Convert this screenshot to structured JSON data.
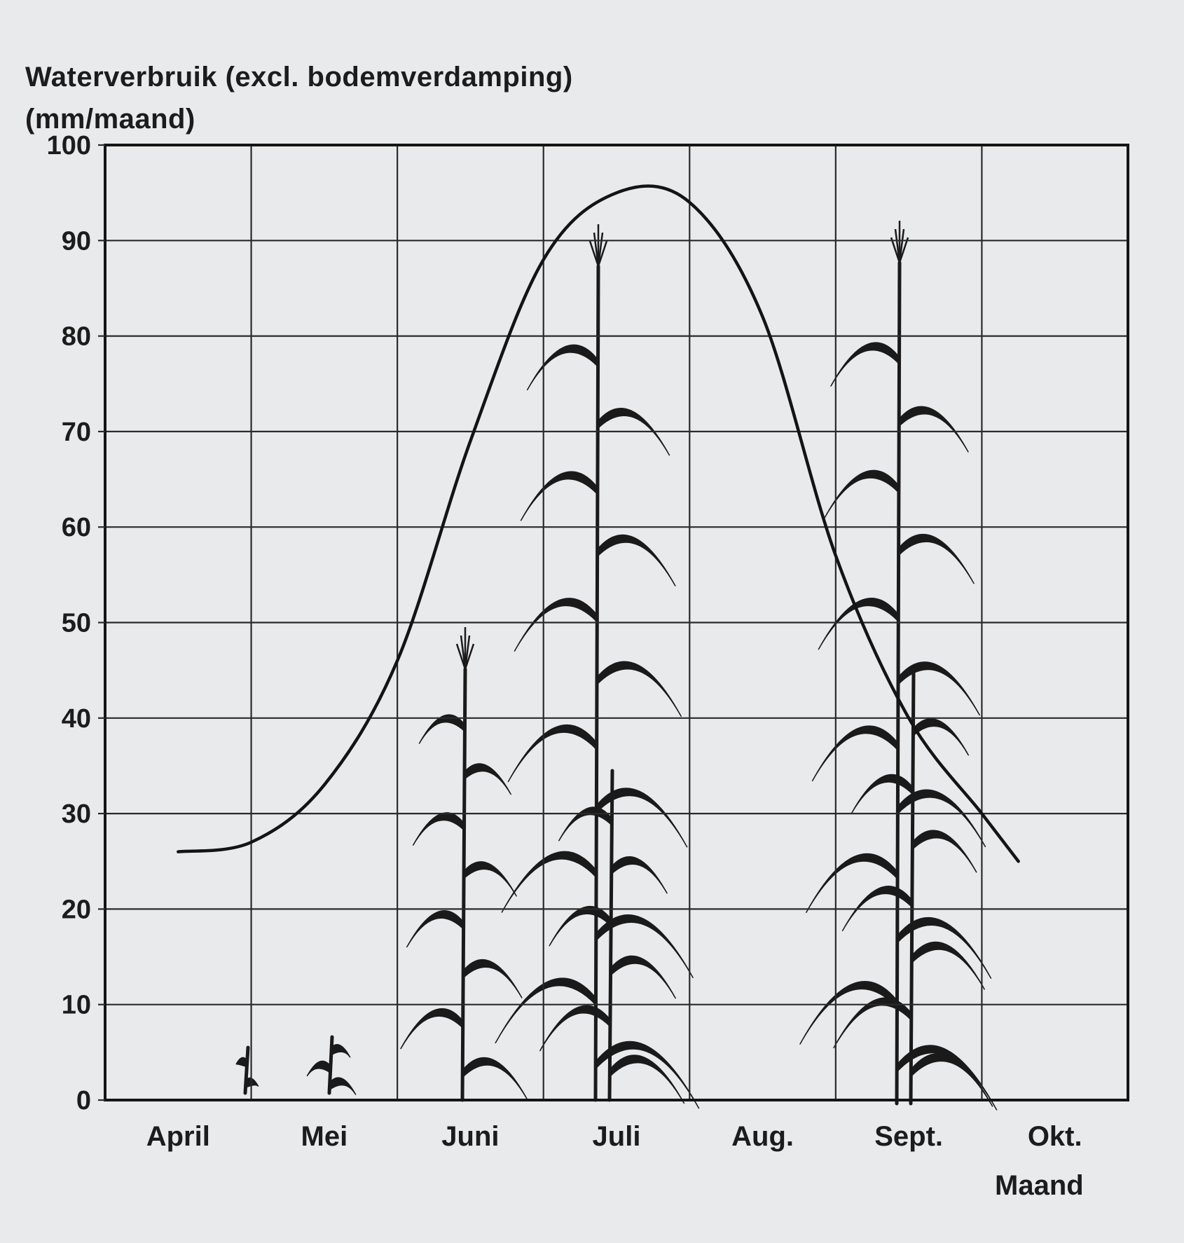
{
  "chart_data": {
    "type": "line",
    "ylabel_lines": [
      "Waterverbruik (excl. bodemverdamping)",
      "(mm/maand)"
    ],
    "xlabel": "Maand",
    "x_ticks": [
      "April",
      "Mei",
      "Juni",
      "Juli",
      "Aug.",
      "Sept.",
      "Okt."
    ],
    "y_ticks": [
      0,
      10,
      20,
      30,
      40,
      50,
      60,
      70,
      80,
      90,
      100
    ],
    "ylim": [
      0,
      100
    ],
    "grid": true,
    "series": [
      {
        "x": [
          0.0,
          0.5,
          1.0,
          1.5,
          2.0,
          2.5,
          3.0,
          3.5,
          4.0,
          4.5,
          5.0,
          5.5,
          5.75
        ],
        "values": [
          26,
          27,
          33,
          46,
          69,
          88,
          95,
          94,
          82,
          57,
          40,
          30,
          25
        ]
      }
    ],
    "illustration": "maize-plants"
  }
}
